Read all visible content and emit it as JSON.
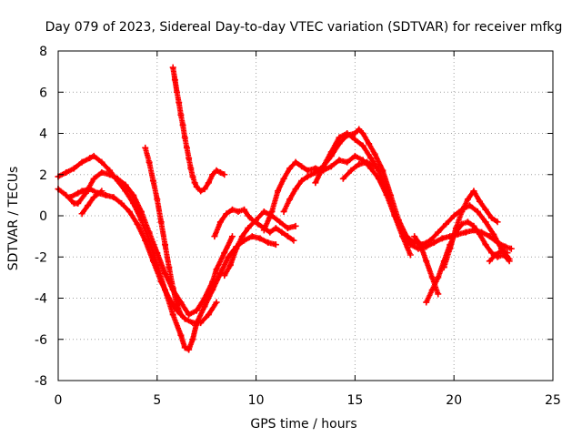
{
  "chart_data": {
    "type": "scatter",
    "title": "Day 079 of 2023, Sidereal Day-to-day VTEC variation (SDTVAR) for receiver mfkg",
    "xlabel": "GPS time / hours",
    "ylabel": "SDTVAR / TECUs",
    "xlim": [
      0,
      25
    ],
    "ylim": [
      -8,
      8
    ],
    "xticks": [
      "0",
      "5",
      "10",
      "15",
      "20",
      "25"
    ],
    "yticks": [
      "-8",
      "-6",
      "-4",
      "-2",
      "0",
      "2",
      "4",
      "6",
      "8"
    ],
    "grid": true,
    "marker": "+",
    "color": "#ff0000",
    "series": [
      {
        "x": [
          0.0,
          0.4,
          0.8,
          1.2,
          1.6,
          1.8,
          2.2,
          2.6,
          3.0,
          3.4,
          3.8,
          4.2,
          4.6,
          5.0,
          5.4,
          5.8,
          6.2,
          6.4,
          6.6,
          6.8,
          7.0,
          7.4,
          7.8,
          8.2,
          8.6,
          9.0,
          9.4,
          9.8,
          10.2,
          10.6,
          11.0
        ],
        "y": [
          1.9,
          2.1,
          2.3,
          2.6,
          2.8,
          2.9,
          2.6,
          2.2,
          1.7,
          1.2,
          0.6,
          -0.2,
          -1.2,
          -2.4,
          -3.6,
          -4.8,
          -5.8,
          -6.4,
          -6.5,
          -6.0,
          -5.2,
          -4.4,
          -3.6,
          -2.8,
          -2.0,
          -1.5,
          -1.2,
          -1.0,
          -1.1,
          -1.3,
          -1.4
        ]
      },
      {
        "x": [
          0.0,
          0.4,
          0.8,
          1.0,
          1.4,
          1.8,
          2.2,
          2.6,
          3.0,
          3.4,
          3.8,
          4.2,
          4.6,
          5.0,
          5.4,
          5.8,
          6.2,
          6.6,
          7.0,
          7.4,
          7.8,
          8.0,
          8.4,
          8.8
        ],
        "y": [
          1.3,
          1.0,
          0.6,
          0.6,
          1.1,
          1.8,
          2.1,
          2.0,
          1.8,
          1.5,
          1.0,
          0.2,
          -0.8,
          -1.8,
          -2.8,
          -3.6,
          -4.2,
          -4.8,
          -4.6,
          -4.0,
          -3.2,
          -2.6,
          -1.8,
          -1.0
        ]
      },
      {
        "x": [
          0.6,
          1.0,
          1.2,
          1.6,
          2.0,
          2.4,
          2.8,
          3.2,
          3.6,
          4.0,
          4.4,
          4.8,
          5.2,
          5.6,
          6.0,
          6.4,
          6.8,
          7.2,
          7.6,
          8.0
        ],
        "y": [
          0.9,
          1.1,
          1.2,
          1.3,
          1.1,
          1.0,
          0.9,
          0.6,
          0.2,
          -0.4,
          -1.2,
          -2.2,
          -3.2,
          -4.0,
          -4.6,
          -5.0,
          -5.2,
          -5.2,
          -4.8,
          -4.2
        ]
      },
      {
        "x": [
          1.2,
          1.5,
          1.8,
          2.2
        ],
        "y": [
          0.1,
          0.5,
          0.9,
          1.2
        ]
      },
      {
        "x": [
          4.4,
          4.6,
          4.8,
          5.0,
          5.2,
          5.4,
          5.6,
          5.8,
          6.0,
          6.2
        ],
        "y": [
          3.3,
          2.6,
          1.7,
          0.8,
          -0.3,
          -1.4,
          -2.5,
          -3.5,
          -4.3,
          -4.8
        ]
      },
      {
        "x": [
          5.8,
          5.9,
          6.0,
          6.1,
          6.2,
          6.3,
          6.4,
          6.5,
          6.6,
          6.7,
          6.8,
          6.9,
          7.0,
          7.2,
          7.4,
          7.6,
          7.8,
          8.0,
          8.2,
          8.4
        ],
        "y": [
          7.2,
          6.6,
          6.0,
          5.5,
          4.9,
          4.4,
          3.8,
          3.3,
          2.8,
          2.3,
          1.9,
          1.6,
          1.4,
          1.2,
          1.3,
          1.6,
          2.0,
          2.2,
          2.1,
          2.0
        ]
      },
      {
        "x": [
          7.9,
          8.2,
          8.5,
          8.8,
          9.1,
          9.4,
          9.6,
          9.8,
          10.1,
          10.4,
          10.7,
          11.0,
          11.3,
          11.6,
          11.9
        ],
        "y": [
          -1.0,
          -0.3,
          0.1,
          0.3,
          0.2,
          0.3,
          0.0,
          -0.2,
          -0.4,
          -0.6,
          -0.8,
          -0.6,
          -0.8,
          -1.0,
          -1.2
        ]
      },
      {
        "x": [
          8.4,
          8.7,
          9.0,
          9.3,
          9.6
        ],
        "y": [
          -2.9,
          -2.4,
          -1.6,
          -1.0,
          -0.6
        ]
      },
      {
        "x": [
          9.6,
          10.0,
          10.4,
          10.8,
          11.2,
          11.6,
          12.0
        ],
        "y": [
          -0.6,
          -0.2,
          0.2,
          0.0,
          -0.3,
          -0.6,
          -0.5
        ]
      },
      {
        "x": [
          10.4,
          10.8,
          11.1,
          11.4,
          11.7,
          12.0,
          12.3,
          12.6,
          13.0,
          13.4,
          13.8,
          14.2,
          14.6,
          15.0,
          15.4,
          15.8,
          16.2,
          16.6,
          17.0,
          17.4,
          17.8,
          18.2,
          18.6,
          19.0,
          19.4,
          19.8,
          20.2,
          20.6,
          21.0,
          21.4,
          21.8,
          22.2,
          22.6,
          22.9
        ],
        "y": [
          -0.7,
          0.2,
          1.2,
          1.8,
          2.3,
          2.6,
          2.4,
          2.2,
          2.3,
          2.2,
          2.4,
          2.7,
          2.6,
          2.9,
          2.7,
          2.3,
          1.8,
          1.0,
          0.0,
          -0.8,
          -1.4,
          -1.6,
          -1.5,
          -1.3,
          -1.1,
          -1.0,
          -0.9,
          -0.8,
          -0.7,
          -0.8,
          -1.0,
          -1.3,
          -1.5,
          -1.6
        ]
      },
      {
        "x": [
          11.4,
          11.7,
          12.0,
          12.3,
          12.6,
          13.0,
          13.4,
          13.8,
          14.2,
          14.6,
          15.0,
          15.2,
          15.4,
          15.7,
          16.0,
          16.4,
          16.8,
          17.2,
          17.6,
          18.0,
          18.4,
          18.8,
          19.2,
          19.6,
          20.0,
          20.4,
          20.8,
          21.2,
          21.6,
          22.0,
          22.4,
          22.8
        ],
        "y": [
          0.2,
          0.8,
          1.3,
          1.7,
          1.9,
          2.1,
          2.4,
          2.9,
          3.5,
          3.9,
          4.0,
          4.2,
          4.0,
          3.5,
          3.0,
          2.2,
          1.0,
          -0.2,
          -1.0,
          -1.3,
          -1.4,
          -1.2,
          -0.8,
          -0.4,
          0.0,
          0.3,
          0.5,
          0.2,
          -0.3,
          -0.9,
          -1.6,
          -2.1
        ]
      },
      {
        "x": [
          13.0,
          13.4,
          13.8,
          14.2,
          14.6,
          15.0,
          15.4,
          15.8,
          16.2,
          16.6,
          17.0,
          17.4,
          17.8
        ],
        "y": [
          1.6,
          2.4,
          3.1,
          3.8,
          4.0,
          3.7,
          3.4,
          2.8,
          2.2,
          1.2,
          0.0,
          -1.0,
          -1.9
        ]
      },
      {
        "x": [
          14.4,
          14.8,
          15.2,
          15.6,
          16.0
        ],
        "y": [
          1.8,
          2.2,
          2.5,
          2.6,
          2.4
        ]
      },
      {
        "x": [
          18.0,
          18.3,
          18.6,
          18.9,
          19.2
        ],
        "y": [
          -1.0,
          -1.4,
          -2.2,
          -3.0,
          -3.8
        ]
      },
      {
        "x": [
          18.6,
          18.9,
          19.2,
          19.5,
          19.8,
          20.1,
          20.4,
          20.7,
          21.0,
          21.3,
          21.6,
          21.9,
          22.2,
          22.5,
          22.8
        ],
        "y": [
          -4.2,
          -3.6,
          -3.0,
          -2.2,
          -1.4,
          -0.8,
          -0.4,
          -0.3,
          -0.5,
          -0.9,
          -1.4,
          -1.8,
          -2.0,
          -1.9,
          -2.2
        ]
      },
      {
        "x": [
          19.5,
          19.8,
          20.1,
          20.4,
          20.7,
          21.0,
          21.3,
          21.6,
          21.9,
          22.2
        ],
        "y": [
          -2.5,
          -1.6,
          -0.6,
          0.2,
          0.8,
          1.2,
          0.7,
          0.3,
          -0.1,
          -0.3
        ]
      },
      {
        "x": [
          21.8,
          22.1,
          22.4,
          22.7
        ],
        "y": [
          -2.2,
          -1.9,
          -1.7,
          -1.8
        ]
      }
    ]
  }
}
